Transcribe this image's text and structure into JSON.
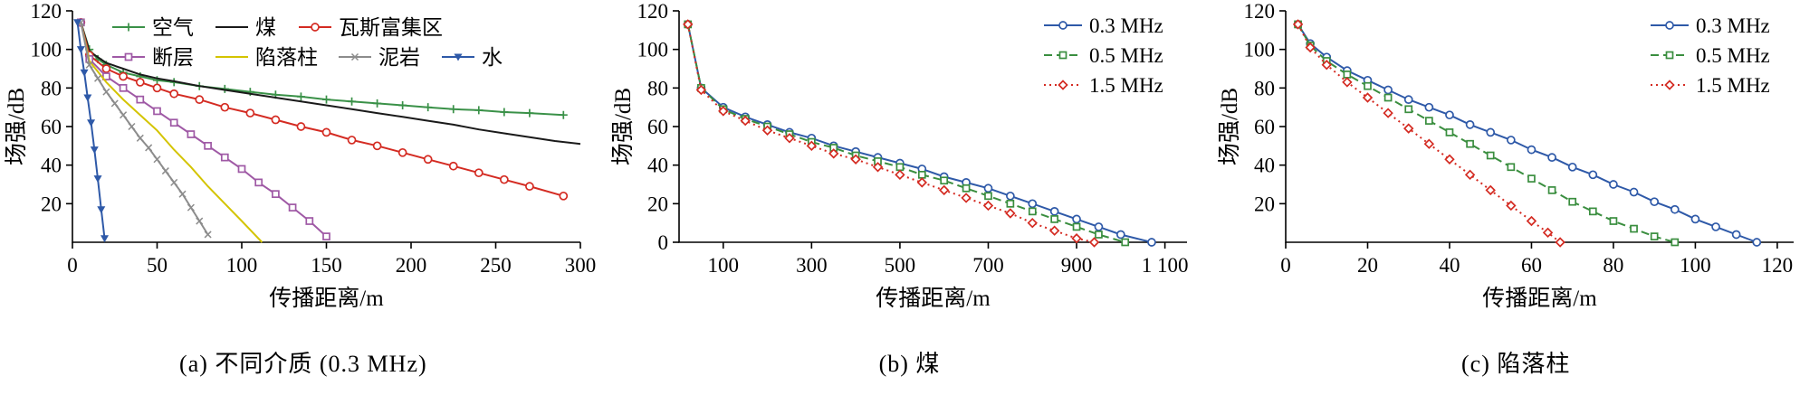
{
  "figure": {
    "background": "#ffffff",
    "text_color": "#000000"
  },
  "chart_data": [
    {
      "type": "line",
      "caption": "(a) 不同介质 (0.3 MHz)",
      "xlabel": "传播距离/m",
      "ylabel": "场强/dB",
      "xlim": [
        0,
        300
      ],
      "ylim": [
        0,
        120
      ],
      "xticks": [
        0,
        50,
        100,
        150,
        200,
        250,
        300
      ],
      "xtick_labels": [
        "0",
        "50",
        "100",
        "150",
        "200",
        "250",
        "300"
      ],
      "yticks": [
        20,
        40,
        60,
        80,
        100,
        120
      ],
      "ytick_labels": [
        "20",
        "40",
        "60",
        "80",
        "100",
        "120"
      ],
      "grid": false,
      "legend": {
        "layout": "flow-top-left",
        "rows": [
          [
            0,
            1,
            2
          ],
          [
            3,
            4,
            5,
            6
          ]
        ]
      },
      "series": [
        {
          "name": "空气",
          "color": "#3a9148",
          "marker": "plus",
          "dash": "solid",
          "x": [
            5,
            10,
            15,
            20,
            30,
            40,
            50,
            60,
            75,
            90,
            105,
            120,
            135,
            150,
            165,
            180,
            195,
            210,
            225,
            240,
            255,
            270,
            290
          ],
          "y": [
            114,
            100,
            95,
            92,
            88,
            86,
            84,
            83,
            81,
            79.5,
            78,
            76.5,
            75.5,
            74,
            73,
            72,
            71,
            70,
            69,
            68.5,
            67.5,
            67,
            66
          ]
        },
        {
          "name": "煤",
          "color": "#1a1a1a",
          "marker": "none",
          "dash": "solid",
          "x": [
            5,
            10,
            15,
            20,
            30,
            40,
            50,
            60,
            75,
            90,
            105,
            120,
            135,
            150,
            165,
            180,
            195,
            210,
            225,
            240,
            255,
            270,
            285,
            300
          ],
          "y": [
            114,
            99,
            96,
            93,
            90,
            87,
            85,
            83.5,
            81,
            79,
            77,
            75,
            73,
            71,
            69,
            67,
            65,
            63,
            61,
            58.5,
            56.5,
            54.5,
            52.5,
            51
          ]
        },
        {
          "name": "瓦斯富集区",
          "color": "#d42b22",
          "marker": "circle",
          "dash": "solid",
          "x": [
            5,
            10,
            20,
            30,
            40,
            50,
            60,
            75,
            90,
            105,
            120,
            135,
            150,
            165,
            180,
            195,
            210,
            225,
            240,
            255,
            270,
            290
          ],
          "y": [
            114,
            97,
            90,
            86,
            83,
            80,
            77,
            74,
            70,
            67,
            63.5,
            60,
            57,
            53,
            50,
            46.5,
            43,
            39.5,
            36,
            32.5,
            29,
            24
          ]
        },
        {
          "name": "断层",
          "color": "#9f59a5",
          "marker": "square",
          "dash": "solid",
          "x": [
            5,
            10,
            20,
            30,
            40,
            50,
            60,
            70,
            80,
            90,
            100,
            110,
            120,
            130,
            140,
            150
          ],
          "y": [
            114,
            95,
            86,
            80,
            74,
            68,
            62,
            56,
            50,
            44,
            38,
            31,
            25,
            18,
            11,
            3
          ]
        },
        {
          "name": "陷落柱",
          "color": "#d4c400",
          "marker": "none",
          "dash": "solid",
          "x": [
            5,
            10,
            20,
            30,
            40,
            50,
            60,
            70,
            80,
            90,
            100,
            112
          ],
          "y": [
            114,
            94,
            83,
            74,
            66,
            58,
            48,
            39,
            29,
            20,
            11,
            0
          ]
        },
        {
          "name": "泥岩",
          "color": "#8c8c8c",
          "marker": "x",
          "dash": "solid",
          "x": [
            5,
            10,
            15,
            20,
            25,
            30,
            35,
            40,
            45,
            50,
            55,
            60,
            65,
            70,
            75,
            80
          ],
          "y": [
            114,
            92,
            85,
            78,
            72,
            66,
            60,
            54,
            49,
            43,
            37,
            31,
            25,
            18,
            11,
            4
          ]
        },
        {
          "name": "水",
          "color": "#2e59a8",
          "marker": "triangle-down",
          "dash": "solid",
          "x": [
            3,
            5,
            7,
            9,
            11,
            13,
            15,
            17,
            19
          ],
          "y": [
            114,
            100,
            88,
            75,
            62,
            48,
            33,
            17,
            2
          ]
        }
      ]
    },
    {
      "type": "line",
      "caption": "(b) 煤",
      "xlabel": "传播距离/m",
      "ylabel": "场强/dB",
      "xlim": [
        0,
        1150
      ],
      "ylim": [
        0,
        120
      ],
      "xticks": [
        100,
        300,
        500,
        700,
        900,
        1100
      ],
      "xtick_labels": [
        "100",
        "300",
        "500",
        "700",
        "900",
        "1 100"
      ],
      "yticks": [
        0,
        20,
        40,
        60,
        80,
        100,
        120
      ],
      "ytick_labels": [
        "0",
        "20",
        "40",
        "60",
        "80",
        "100",
        "120"
      ],
      "grid": false,
      "legend": {
        "layout": "top-right",
        "rows": [
          [
            0
          ],
          [
            1
          ],
          [
            2
          ]
        ]
      },
      "series": [
        {
          "name": "0.3 MHz",
          "color": "#2e59a8",
          "marker": "circle",
          "dash": "solid",
          "x": [
            20,
            50,
            100,
            150,
            200,
            250,
            300,
            350,
            400,
            450,
            500,
            550,
            600,
            650,
            700,
            750,
            800,
            850,
            900,
            950,
            1000,
            1070
          ],
          "y": [
            113,
            80,
            70,
            65,
            61,
            57,
            54,
            50,
            47,
            44,
            41,
            38,
            34,
            31,
            28,
            24,
            20,
            16,
            12,
            8,
            4,
            0
          ]
        },
        {
          "name": "0.5 MHz",
          "color": "#3a8e3f",
          "marker": "square",
          "dash": "dashed",
          "x": [
            20,
            50,
            100,
            150,
            200,
            250,
            300,
            350,
            400,
            450,
            500,
            550,
            600,
            650,
            700,
            750,
            800,
            850,
            900,
            950,
            1010
          ],
          "y": [
            113,
            80,
            69,
            64,
            60,
            56,
            52,
            49,
            45,
            42,
            39,
            35,
            32,
            28,
            24,
            20,
            16,
            12,
            8,
            4,
            0
          ]
        },
        {
          "name": "1.5 MHz",
          "color": "#d42b22",
          "marker": "diamond",
          "dash": "dotted",
          "x": [
            20,
            50,
            100,
            150,
            200,
            250,
            300,
            350,
            400,
            450,
            500,
            550,
            600,
            650,
            700,
            750,
            800,
            850,
            900,
            940
          ],
          "y": [
            113,
            79,
            68,
            63,
            58,
            54,
            50,
            46,
            43,
            39,
            35,
            31,
            27,
            23,
            19,
            15,
            10,
            6,
            2,
            0
          ]
        }
      ]
    },
    {
      "type": "line",
      "caption": "(c) 陷落柱",
      "xlabel": "传播距离/m",
      "ylabel": "场强/dB",
      "xlim": [
        0,
        124
      ],
      "ylim": [
        0,
        120
      ],
      "xticks": [
        0,
        20,
        40,
        60,
        80,
        100,
        120
      ],
      "xtick_labels": [
        "0",
        "20",
        "40",
        "60",
        "80",
        "100",
        "120"
      ],
      "yticks": [
        20,
        40,
        60,
        80,
        100,
        120
      ],
      "ytick_labels": [
        "20",
        "40",
        "60",
        "80",
        "100",
        "120"
      ],
      "grid": false,
      "legend": {
        "layout": "top-right",
        "rows": [
          [
            0
          ],
          [
            1
          ],
          [
            2
          ]
        ]
      },
      "series": [
        {
          "name": "0.3 MHz",
          "color": "#2e59a8",
          "marker": "circle",
          "dash": "solid",
          "x": [
            3,
            6,
            10,
            15,
            20,
            25,
            30,
            35,
            40,
            45,
            50,
            55,
            60,
            65,
            70,
            75,
            80,
            85,
            90,
            95,
            100,
            105,
            110,
            115
          ],
          "y": [
            113,
            103,
            96,
            89,
            84,
            79,
            74,
            70,
            66,
            61,
            57,
            53,
            48,
            44,
            39,
            35,
            30,
            26,
            21,
            17,
            12,
            8,
            4,
            0
          ]
        },
        {
          "name": "0.5 MHz",
          "color": "#3a8e3f",
          "marker": "square",
          "dash": "dashed",
          "x": [
            3,
            6,
            10,
            15,
            20,
            25,
            30,
            35,
            40,
            45,
            50,
            55,
            60,
            65,
            70,
            75,
            80,
            85,
            90,
            95
          ],
          "y": [
            113,
            102,
            94,
            87,
            81,
            75,
            69,
            63,
            57,
            51,
            45,
            39,
            33,
            27,
            21,
            16,
            11,
            7,
            3,
            0
          ]
        },
        {
          "name": "1.5 MHz",
          "color": "#d42b22",
          "marker": "diamond",
          "dash": "dotted",
          "x": [
            3,
            6,
            10,
            15,
            20,
            25,
            30,
            35,
            40,
            45,
            50,
            55,
            60,
            64,
            67
          ],
          "y": [
            113,
            101,
            92,
            83,
            75,
            67,
            59,
            51,
            43,
            35,
            27,
            19,
            11,
            5,
            0
          ]
        }
      ]
    }
  ]
}
